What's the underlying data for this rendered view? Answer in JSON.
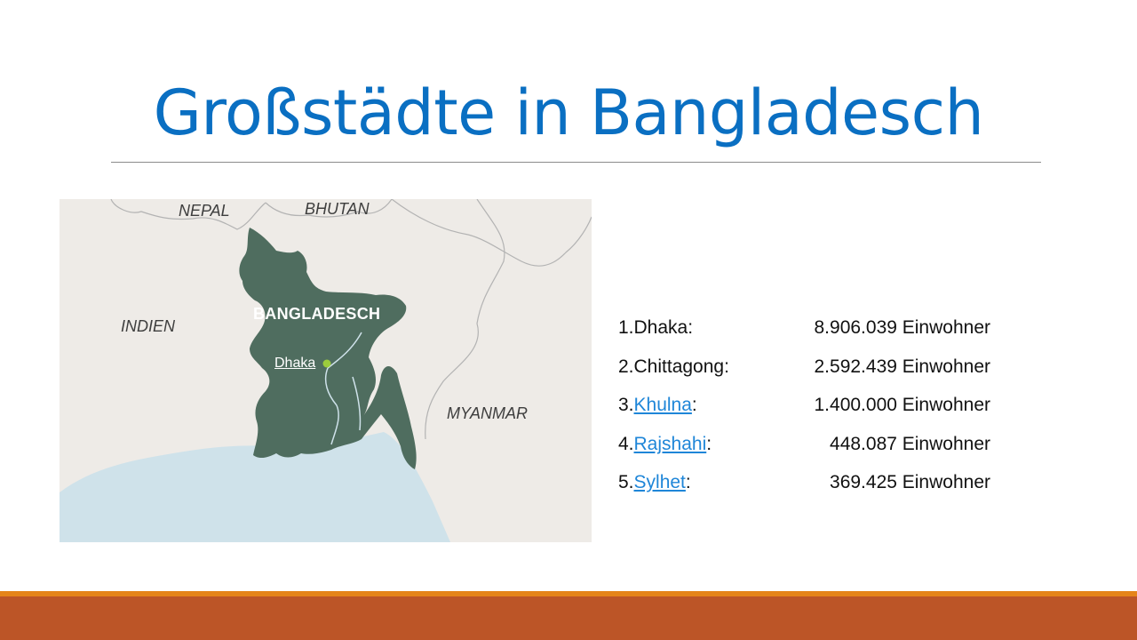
{
  "slide": {
    "title": "Großstädte in Bangladesch"
  },
  "map": {
    "labels": {
      "nepal": "NEPAL",
      "bhutan": "BHUTAN",
      "indien": "INDIEN",
      "bangladesch": "BANGLADESCH",
      "myanmar": "MYANMAR",
      "dhaka": "Dhaka"
    },
    "colors": {
      "land": "#eeebe7",
      "country": "#4f6d5f",
      "water": "#cfe2ea",
      "city_dot": "#9ccc3c"
    }
  },
  "cities": [
    {
      "index": "1.",
      "name": "Dhaka",
      "suffix": ":",
      "population": "8.906.039 Einwohner",
      "linked": false
    },
    {
      "index": "2.",
      "name": "Chittagong",
      "suffix": ":",
      "population": "2.592.439 Einwohner",
      "linked": false
    },
    {
      "index": "3.",
      "name": "Khulna",
      "suffix": ":",
      "population": "1.400.000 Einwohner",
      "linked": true
    },
    {
      "index": "4.",
      "name": "Rajshahi",
      "suffix": ":",
      "population": "448.087 Einwohner",
      "linked": true
    },
    {
      "index": "5.",
      "name": "Sylhet",
      "suffix": ":",
      "population": "369.425 Einwohner",
      "linked": true
    }
  ],
  "theme": {
    "title_color": "#0a6fc2",
    "link_color": "#1f86d8",
    "footer_top": "#e58419",
    "footer_bottom": "#bc5527"
  }
}
